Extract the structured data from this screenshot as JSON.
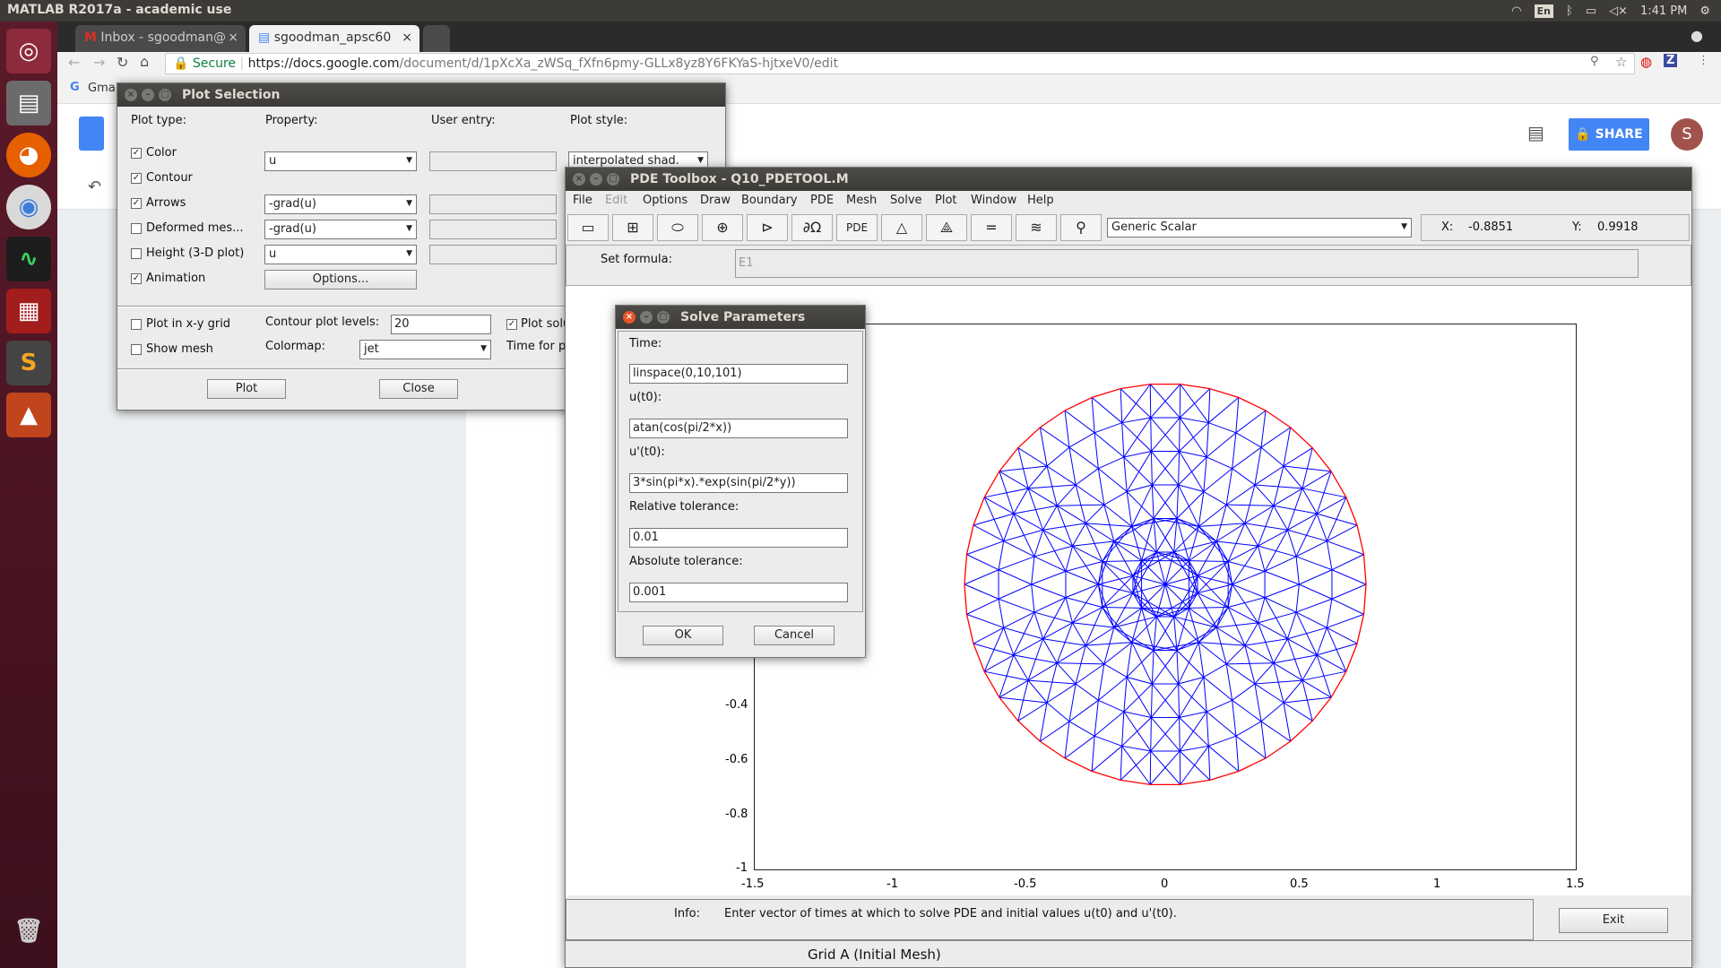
{
  "topbar": {
    "title": "MATLAB R2017a - academic use",
    "lang": "En",
    "time": "1:41 PM"
  },
  "chrome": {
    "tabs": [
      {
        "label": "Inbox - sgoodman@"
      },
      {
        "label": "sgoodman_apsc60"
      }
    ],
    "secure": "Secure",
    "url_domain": "https://docs.google.com",
    "url_path": "/document/d/1pXcXa_zWSq_fXfn6pmy-GLLx8yz8Y6FKYaS-hjtxeV0/edit",
    "bookmark": "Gma"
  },
  "docs": {
    "share_label": "SHARE",
    "avatar_letter": "S"
  },
  "plot_selection": {
    "title": "Plot Selection",
    "headers": {
      "plot_type": "Plot type:",
      "property": "Property:",
      "user_entry": "User entry:",
      "plot_style": "Plot style:"
    },
    "rows": [
      {
        "label": "Color",
        "checked": true,
        "property": "u"
      },
      {
        "label": "Contour",
        "checked": true,
        "property": ""
      },
      {
        "label": "Arrows",
        "checked": true,
        "property": "-grad(u)"
      },
      {
        "label": "Deformed mes...",
        "checked": false,
        "property": "-grad(u)"
      },
      {
        "label": "Height (3-D plot)",
        "checked": false,
        "property": "u"
      },
      {
        "label": "Animation",
        "checked": true,
        "property": ""
      }
    ],
    "plot_style_value": "interpolated shad.",
    "options_button": "Options...",
    "plot_in_xy_grid": "Plot in x-y grid",
    "show_mesh": "Show mesh",
    "contour_levels_label": "Contour plot levels:",
    "contour_levels_value": "20",
    "colormap_label": "Colormap:",
    "colormap_value": "jet",
    "plot_solution_label": "Plot solu",
    "time_for_plot_label": "Time for p",
    "plot_button": "Plot",
    "close_button": "Close"
  },
  "pde_toolbox": {
    "title": "PDE Toolbox - Q10_PDETOOL.M",
    "menu": [
      "File",
      "Edit",
      "Options",
      "Draw",
      "Boundary",
      "PDE",
      "Mesh",
      "Solve",
      "Plot",
      "Window",
      "Help"
    ],
    "tool_pde_label": "PDE",
    "tool_domega": "∂Ω",
    "mode_value": "Generic Scalar",
    "x_label": "X:",
    "x_value": "-0.8851",
    "y_label": "Y:",
    "y_value": "0.9918",
    "set_formula_label": "Set formula:",
    "set_formula_value": "E1",
    "info_label": "Info:",
    "info_text": "Enter vector of times at which to solve PDE and initial values u(t0) and u'(t0).",
    "exit_button": "Exit",
    "grid_caption": "Grid A (Initial Mesh)",
    "x_ticks": [
      "-1.5",
      "-1",
      "-0.5",
      "0",
      "0.5",
      "1",
      "1.5"
    ],
    "y_ticks": [
      "-0.4",
      "-0.6",
      "-0.8",
      "-1"
    ],
    "mesh_color": "#0000ff",
    "boundary_color": "#ff0000"
  },
  "solve_params": {
    "title": "Solve Parameters",
    "time_label": "Time:",
    "time_value": "linspace(0,10,101)",
    "u0_label": "u(t0):",
    "u0_value": "atan(cos(pi/2*x))",
    "up0_label": "u'(t0):",
    "up0_value": "3*sin(pi*x).*exp(sin(pi/2*y))",
    "rtol_label": "Relative tolerance:",
    "rtol_value": "0.01",
    "atol_label": "Absolute tolerance:",
    "atol_value": "0.001",
    "ok_button": "OK",
    "cancel_button": "Cancel"
  }
}
